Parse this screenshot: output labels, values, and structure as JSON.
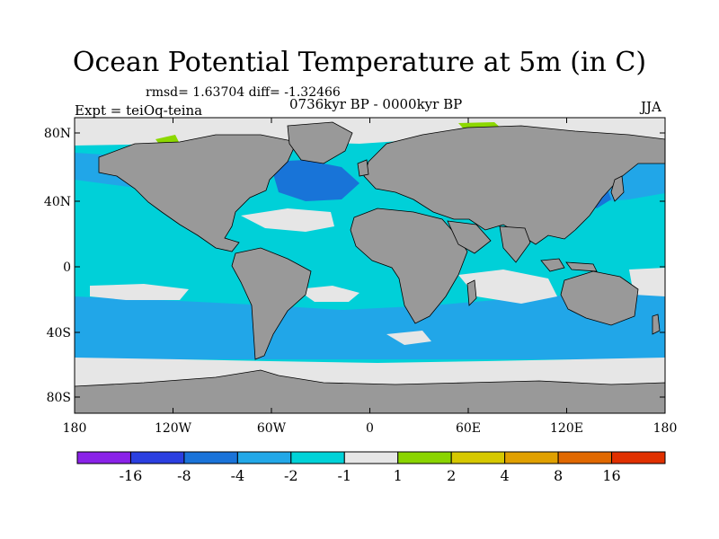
{
  "title": "Ocean Potential Temperature at 5m (in C)",
  "stats": "rmsd= 1.63704 diff= -1.32466",
  "period": "0736kyr BP - 0000kyr BP",
  "experiment": "Expt = teiOq-teina",
  "season": "JJA",
  "map": {
    "lat_ticks": [
      "80N",
      "40N",
      "0",
      "40S",
      "80S"
    ],
    "lon_ticks": [
      "180",
      "120W",
      "60W",
      "0",
      "60E",
      "120E",
      "180"
    ],
    "colors": {
      "land": "#999999",
      "ocean_default": "#00d0d8",
      "band_light": "#e6e6e6",
      "band_mid_blue": "#21a6e8",
      "band_dark_blue": "#1874d8",
      "band_green": "#8cd800",
      "frame": "#000000"
    }
  },
  "colorbar": {
    "colors": [
      "#8a22e8",
      "#2b3fe0",
      "#1a73d9",
      "#22a8e8",
      "#00d2d8",
      "#e6e6e6",
      "#8ad400",
      "#d6c800",
      "#e0a000",
      "#e06800",
      "#e03000"
    ],
    "labels": [
      "-16",
      "-8",
      "-4",
      "-2",
      "-1",
      "1",
      "2",
      "4",
      "8",
      "16"
    ]
  }
}
